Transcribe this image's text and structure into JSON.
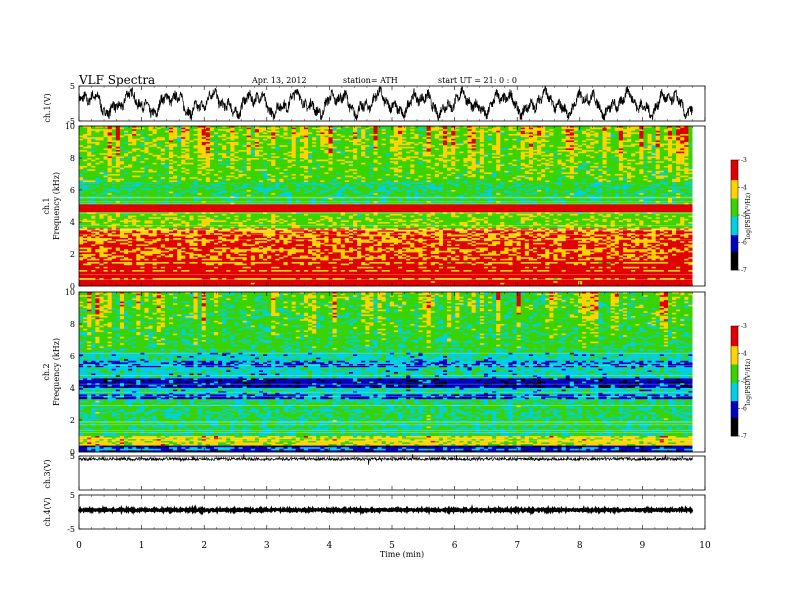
{
  "header": {
    "title": "VLF Spectra",
    "date": "Apr. 13, 2012",
    "station": "station= ATH",
    "start": "start UT =  21: 0 : 0"
  },
  "colorbar_label": "log(PSD(V²/Hz)",
  "colorbar_ticks": [
    "-3",
    "-4",
    "-5",
    "-6",
    "-7"
  ],
  "colors": {
    "max": "#e00000",
    "high": "#ffd400",
    "mid": "#39d400",
    "low": "#00d0e0",
    "lowest": "#0000c0",
    "min": "#000000"
  },
  "chart_data": [
    {
      "type": "line",
      "name": "ch.1(V)",
      "ylabel": "ch.1(V)",
      "ylim": [
        -5,
        5
      ],
      "yticks": [
        "5",
        "-5"
      ],
      "style": "noisy waveform, amplitude ~±4 V"
    },
    {
      "type": "heatmap",
      "ylabel": "ch.1\nFrequency (kHz)",
      "ylabel_l1": "ch.1",
      "ylabel_l2": "Frequency (kHz)",
      "ylim": [
        0,
        10
      ],
      "yticks": [
        "10",
        "8",
        "6",
        "4",
        "2",
        "0"
      ],
      "zlim": [
        -7,
        -3
      ],
      "zlabel": "log(PSD(V²/Hz)"
    },
    {
      "type": "heatmap",
      "ylabel": "ch.2\nFrequency (kHz)",
      "ylabel_l1": "ch.2",
      "ylabel_l2": "Frequency (kHz)",
      "ylim": [
        0,
        10
      ],
      "yticks": [
        "10",
        "8",
        "6",
        "4",
        "2",
        "0"
      ],
      "zlim": [
        -7,
        -3
      ],
      "zlabel": "log(PSD(V²/Hz)"
    },
    {
      "type": "line",
      "name": "ch.3(V)",
      "ylabel": "ch.3(V)",
      "ylim": [
        -5,
        5
      ],
      "yticks": [
        "5"
      ],
      "style": "small noise near 0 V"
    },
    {
      "type": "line",
      "name": "ch.4(V)",
      "ylabel": "ch.4(V)",
      "ylim": [
        -5,
        5
      ],
      "yticks": [
        "5",
        "-5"
      ],
      "style": "flat thick trace near 0 V"
    }
  ],
  "xaxis": {
    "label": "Time (min)",
    "ticks": [
      "0",
      "1",
      "2",
      "3",
      "4",
      "5",
      "6",
      "7",
      "8",
      "9",
      "10"
    ],
    "xlim": [
      0,
      10
    ],
    "data_end": 9.8
  }
}
